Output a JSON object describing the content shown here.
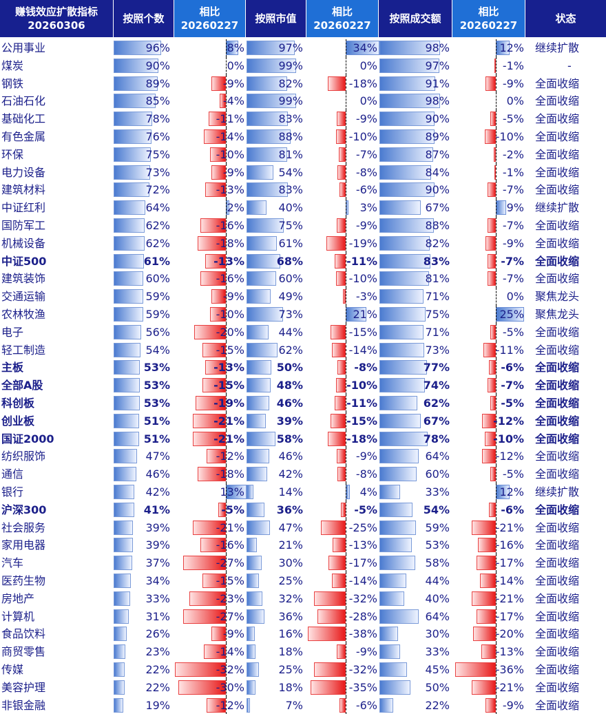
{
  "header": {
    "col_name_line1": "赚钱效应扩散指标",
    "col_name_line2": "20260306",
    "col_count": "按照个数",
    "col_diff_line1": "相比",
    "col_diff_line2": "20260227",
    "col_mcap": "按照市值",
    "col_turnover": "按照成交额",
    "col_status": "状态"
  },
  "colors": {
    "header_dark": "#17208f",
    "header_blue": "#1f6fd6",
    "positive_bar": "#4b7bd0",
    "negative_bar": "#e81a1a",
    "text": "#1b1f8a"
  },
  "chart_data": {
    "type": "table",
    "columns": [
      "按照个数",
      "相比20260227",
      "按照市值",
      "相比20260227",
      "按照成交额",
      "相比20260227",
      "状态"
    ],
    "rows": [
      {
        "name": "公用事业",
        "count": 96,
        "count_chg": 8,
        "mcap": 97,
        "mcap_chg": 34,
        "turn": 98,
        "turn_chg": 12,
        "status": "继续扩散",
        "bold": false
      },
      {
        "name": "煤炭",
        "count": 90,
        "count_chg": 0,
        "mcap": 99,
        "mcap_chg": 0,
        "turn": 97,
        "turn_chg": -1,
        "status": "-",
        "bold": false
      },
      {
        "name": "钢铁",
        "count": 89,
        "count_chg": -9,
        "mcap": 82,
        "mcap_chg": -18,
        "turn": 91,
        "turn_chg": -9,
        "status": "全面收缩",
        "bold": false
      },
      {
        "name": "石油石化",
        "count": 85,
        "count_chg": -4,
        "mcap": 99,
        "mcap_chg": 0,
        "turn": 98,
        "turn_chg": 0,
        "status": "全面收缩",
        "bold": false
      },
      {
        "name": "基础化工",
        "count": 78,
        "count_chg": -11,
        "mcap": 83,
        "mcap_chg": -9,
        "turn": 90,
        "turn_chg": -5,
        "status": "全面收缩",
        "bold": false
      },
      {
        "name": "有色金属",
        "count": 76,
        "count_chg": -14,
        "mcap": 88,
        "mcap_chg": -10,
        "turn": 89,
        "turn_chg": -10,
        "status": "全面收缩",
        "bold": false
      },
      {
        "name": "环保",
        "count": 75,
        "count_chg": -10,
        "mcap": 81,
        "mcap_chg": -7,
        "turn": 87,
        "turn_chg": -2,
        "status": "全面收缩",
        "bold": false
      },
      {
        "name": "电力设备",
        "count": 73,
        "count_chg": -9,
        "mcap": 54,
        "mcap_chg": -8,
        "turn": 84,
        "turn_chg": -1,
        "status": "全面收缩",
        "bold": false
      },
      {
        "name": "建筑材料",
        "count": 72,
        "count_chg": -13,
        "mcap": 83,
        "mcap_chg": -6,
        "turn": 90,
        "turn_chg": -7,
        "status": "全面收缩",
        "bold": false
      },
      {
        "name": "中证红利",
        "count": 64,
        "count_chg": 2,
        "mcap": 40,
        "mcap_chg": 3,
        "turn": 67,
        "turn_chg": 9,
        "status": "继续扩散",
        "bold": false
      },
      {
        "name": "国防军工",
        "count": 62,
        "count_chg": -16,
        "mcap": 75,
        "mcap_chg": -9,
        "turn": 88,
        "turn_chg": -7,
        "status": "全面收缩",
        "bold": false
      },
      {
        "name": "机械设备",
        "count": 62,
        "count_chg": -18,
        "mcap": 61,
        "mcap_chg": -19,
        "turn": 82,
        "turn_chg": -9,
        "status": "全面收缩",
        "bold": false
      },
      {
        "name": "中证500",
        "count": 61,
        "count_chg": -13,
        "mcap": 68,
        "mcap_chg": -11,
        "turn": 83,
        "turn_chg": -7,
        "status": "全面收缩",
        "bold": true
      },
      {
        "name": "建筑装饰",
        "count": 60,
        "count_chg": -16,
        "mcap": 60,
        "mcap_chg": -10,
        "turn": 81,
        "turn_chg": -7,
        "status": "全面收缩",
        "bold": false
      },
      {
        "name": "交通运输",
        "count": 59,
        "count_chg": -9,
        "mcap": 49,
        "mcap_chg": -3,
        "turn": 71,
        "turn_chg": 0,
        "status": "聚焦龙头",
        "bold": false
      },
      {
        "name": "农林牧渔",
        "count": 59,
        "count_chg": -10,
        "mcap": 73,
        "mcap_chg": 21,
        "turn": 75,
        "turn_chg": 25,
        "status": "聚焦龙头",
        "bold": false
      },
      {
        "name": "电子",
        "count": 56,
        "count_chg": -20,
        "mcap": 44,
        "mcap_chg": -15,
        "turn": 71,
        "turn_chg": -5,
        "status": "全面收缩",
        "bold": false
      },
      {
        "name": "轻工制造",
        "count": 54,
        "count_chg": -15,
        "mcap": 62,
        "mcap_chg": -14,
        "turn": 73,
        "turn_chg": -11,
        "status": "全面收缩",
        "bold": false
      },
      {
        "name": "主板",
        "count": 53,
        "count_chg": -13,
        "mcap": 50,
        "mcap_chg": -8,
        "turn": 77,
        "turn_chg": -6,
        "status": "全面收缩",
        "bold": true
      },
      {
        "name": "全部A股",
        "count": 53,
        "count_chg": -15,
        "mcap": 48,
        "mcap_chg": -10,
        "turn": 74,
        "turn_chg": -7,
        "status": "全面收缩",
        "bold": true
      },
      {
        "name": "科创板",
        "count": 53,
        "count_chg": -19,
        "mcap": 46,
        "mcap_chg": -11,
        "turn": 62,
        "turn_chg": -5,
        "status": "全面收缩",
        "bold": true
      },
      {
        "name": "创业板",
        "count": 51,
        "count_chg": -21,
        "mcap": 39,
        "mcap_chg": -15,
        "turn": 67,
        "turn_chg": -12,
        "status": "全面收缩",
        "bold": true
      },
      {
        "name": "国证2000",
        "count": 51,
        "count_chg": -21,
        "mcap": 58,
        "mcap_chg": -18,
        "turn": 78,
        "turn_chg": -10,
        "status": "全面收缩",
        "bold": true
      },
      {
        "name": "纺织服饰",
        "count": 47,
        "count_chg": -12,
        "mcap": 46,
        "mcap_chg": -9,
        "turn": 64,
        "turn_chg": -12,
        "status": "全面收缩",
        "bold": false
      },
      {
        "name": "通信",
        "count": 46,
        "count_chg": -18,
        "mcap": 42,
        "mcap_chg": -8,
        "turn": 60,
        "turn_chg": -5,
        "status": "全面收缩",
        "bold": false
      },
      {
        "name": "银行",
        "count": 42,
        "count_chg": 13,
        "mcap": 14,
        "mcap_chg": 4,
        "turn": 33,
        "turn_chg": 12,
        "status": "继续扩散",
        "bold": false
      },
      {
        "name": "沪深300",
        "count": 41,
        "count_chg": -5,
        "mcap": 36,
        "mcap_chg": -5,
        "turn": 54,
        "turn_chg": -6,
        "status": "全面收缩",
        "bold": true
      },
      {
        "name": "社会服务",
        "count": 39,
        "count_chg": -21,
        "mcap": 47,
        "mcap_chg": -25,
        "turn": 59,
        "turn_chg": -21,
        "status": "全面收缩",
        "bold": false
      },
      {
        "name": "家用电器",
        "count": 39,
        "count_chg": -16,
        "mcap": 21,
        "mcap_chg": -13,
        "turn": 53,
        "turn_chg": -16,
        "status": "全面收缩",
        "bold": false
      },
      {
        "name": "汽车",
        "count": 37,
        "count_chg": -27,
        "mcap": 30,
        "mcap_chg": -17,
        "turn": 58,
        "turn_chg": -17,
        "status": "全面收缩",
        "bold": false
      },
      {
        "name": "医药生物",
        "count": 34,
        "count_chg": -15,
        "mcap": 25,
        "mcap_chg": -14,
        "turn": 44,
        "turn_chg": -14,
        "status": "全面收缩",
        "bold": false
      },
      {
        "name": "房地产",
        "count": 33,
        "count_chg": -23,
        "mcap": 32,
        "mcap_chg": -32,
        "turn": 40,
        "turn_chg": -21,
        "status": "全面收缩",
        "bold": false
      },
      {
        "name": "计算机",
        "count": 31,
        "count_chg": -27,
        "mcap": 36,
        "mcap_chg": -28,
        "turn": 64,
        "turn_chg": -17,
        "status": "全面收缩",
        "bold": false
      },
      {
        "name": "食品饮料",
        "count": 26,
        "count_chg": -9,
        "mcap": 16,
        "mcap_chg": -38,
        "turn": 30,
        "turn_chg": -20,
        "status": "全面收缩",
        "bold": false
      },
      {
        "name": "商贸零售",
        "count": 23,
        "count_chg": -14,
        "mcap": 18,
        "mcap_chg": -9,
        "turn": 33,
        "turn_chg": -13,
        "status": "全面收缩",
        "bold": false
      },
      {
        "name": "传媒",
        "count": 22,
        "count_chg": -32,
        "mcap": 25,
        "mcap_chg": -32,
        "turn": 45,
        "turn_chg": -36,
        "status": "全面收缩",
        "bold": false
      },
      {
        "name": "美容护理",
        "count": 22,
        "count_chg": -30,
        "mcap": 18,
        "mcap_chg": -35,
        "turn": 50,
        "turn_chg": -21,
        "status": "全面收缩",
        "bold": false
      },
      {
        "name": "非银金融",
        "count": 19,
        "count_chg": -12,
        "mcap": 7,
        "mcap_chg": -6,
        "turn": 22,
        "turn_chg": -9,
        "status": "全面收缩",
        "bold": false
      }
    ]
  }
}
